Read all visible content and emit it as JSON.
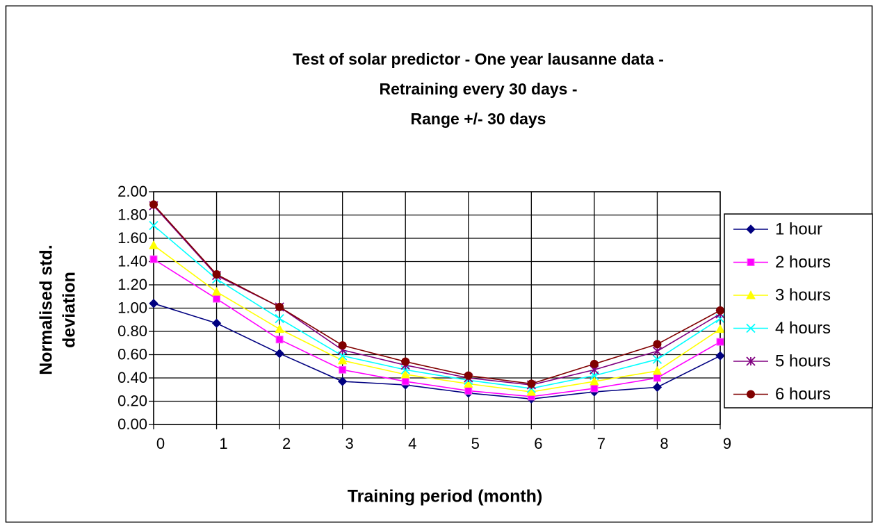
{
  "chart_data": {
    "type": "line",
    "title": [
      "Test of solar predictor - One year lausanne data -",
      "Retraining every 30 days -",
      "Range +/- 30 days"
    ],
    "xlabel": "Training period (month)",
    "ylabel": [
      "Normalised std.",
      "deviation"
    ],
    "x": [
      0,
      1,
      2,
      3,
      4,
      5,
      6,
      7,
      8,
      9
    ],
    "xlim": [
      0,
      9
    ],
    "xticks": [
      0,
      1,
      2,
      3,
      4,
      5,
      6,
      7,
      8,
      9
    ],
    "ylim": [
      0,
      2
    ],
    "yticks": [
      {
        "value": 0,
        "label": "0.00"
      },
      {
        "value": 0.2,
        "label": "0.20"
      },
      {
        "value": 0.4,
        "label": "0.40"
      },
      {
        "value": 0.6,
        "label": "0.60"
      },
      {
        "value": 0.8,
        "label": "0.80"
      },
      {
        "value": 1,
        "label": "1.00"
      },
      {
        "value": 1.2,
        "label": "1.20"
      },
      {
        "value": 1.4,
        "label": "1.40"
      },
      {
        "value": 1.6,
        "label": "1.60"
      },
      {
        "value": 1.8,
        "label": "1.80"
      },
      {
        "value": 2,
        "label": "2.00"
      }
    ],
    "grid": true,
    "legend": "right",
    "series": [
      {
        "name": "1 hour",
        "color": "#000080",
        "marker": "diamond",
        "values": [
          1.04,
          0.87,
          0.61,
          0.37,
          0.34,
          0.27,
          0.22,
          0.28,
          0.32,
          0.59
        ]
      },
      {
        "name": "2 hours",
        "color": "#ff00ff",
        "marker": "square",
        "values": [
          1.42,
          1.08,
          0.73,
          0.47,
          0.37,
          0.29,
          0.24,
          0.31,
          0.4,
          0.71
        ]
      },
      {
        "name": "3 hours",
        "color": "#ffff00",
        "marker": "triangle",
        "values": [
          1.54,
          1.14,
          0.82,
          0.55,
          0.43,
          0.35,
          0.28,
          0.37,
          0.46,
          0.82
        ]
      },
      {
        "name": "4 hours",
        "color": "#00ffff",
        "marker": "x",
        "values": [
          1.71,
          1.25,
          0.91,
          0.59,
          0.47,
          0.38,
          0.31,
          0.42,
          0.56,
          0.91
        ]
      },
      {
        "name": "5 hours",
        "color": "#800080",
        "marker": "star",
        "values": [
          1.88,
          1.28,
          1.01,
          0.64,
          0.51,
          0.4,
          0.34,
          0.47,
          0.63,
          0.95
        ]
      },
      {
        "name": "6 hours",
        "color": "#800000",
        "marker": "circle",
        "values": [
          1.89,
          1.29,
          1.01,
          0.68,
          0.54,
          0.42,
          0.35,
          0.52,
          0.69,
          0.98
        ]
      }
    ]
  }
}
